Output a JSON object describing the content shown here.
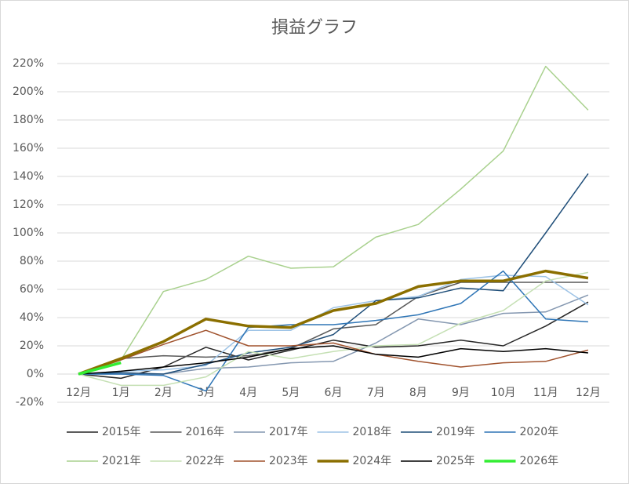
{
  "chart_data": {
    "type": "line",
    "title": "損益グラフ",
    "categories": [
      "12月",
      "1月",
      "2月",
      "3月",
      "4月",
      "5月",
      "6月",
      "7月",
      "8月",
      "9月",
      "10月",
      "11月",
      "12月"
    ],
    "ylim": [
      -20,
      220
    ],
    "yticks": [
      {
        "value": -20,
        "label": "-20%"
      },
      {
        "value": 0,
        "label": "0%"
      },
      {
        "value": 20,
        "label": "20%"
      },
      {
        "value": 40,
        "label": "40%"
      },
      {
        "value": 60,
        "label": "60%"
      },
      {
        "value": 80,
        "label": "80%"
      },
      {
        "value": 100,
        "label": "100%"
      },
      {
        "value": 120,
        "label": "120%"
      },
      {
        "value": 140,
        "label": "140%"
      },
      {
        "value": 160,
        "label": "160%"
      },
      {
        "value": 180,
        "label": "180%"
      },
      {
        "value": 200,
        "label": "200%"
      },
      {
        "value": 220,
        "label": "220%"
      }
    ],
    "grid": true,
    "legend": "bottom",
    "series": [
      {
        "name": "2015年",
        "color": "#262626",
        "width": 1.5,
        "values": [
          0,
          -3,
          5,
          19,
          10,
          17,
          24,
          19,
          20,
          24,
          20,
          34,
          51
        ]
      },
      {
        "name": "2016年",
        "color": "#595959",
        "width": 1.5,
        "values": [
          0,
          11,
          13,
          12,
          13,
          18,
          32,
          35,
          55,
          65,
          65,
          65,
          65
        ]
      },
      {
        "name": "2017年",
        "color": "#8497b0",
        "width": 1.5,
        "values": [
          0,
          0,
          0,
          4,
          5,
          8,
          9,
          22,
          39,
          35,
          43,
          44,
          56
        ]
      },
      {
        "name": "2018年",
        "color": "#9dc3e6",
        "width": 1.5,
        "values": [
          0,
          2,
          3,
          6,
          31,
          31,
          47,
          52,
          55,
          67,
          70,
          69,
          49
        ]
      },
      {
        "name": "2019年",
        "color": "#1f4e79",
        "width": 1.5,
        "values": [
          0,
          1,
          0,
          7,
          15,
          19,
          28,
          52,
          54,
          61,
          59,
          100,
          142
        ]
      },
      {
        "name": "2020年",
        "color": "#2e75b6",
        "width": 1.5,
        "values": [
          0,
          0,
          -1,
          -12,
          33,
          35,
          35,
          38,
          42,
          50,
          73,
          39,
          37
        ]
      },
      {
        "name": "2021年",
        "color": "#a9d18e",
        "width": 1.5,
        "values": [
          0,
          10,
          58.5,
          67,
          83.5,
          75,
          76,
          97,
          106,
          131,
          158,
          218,
          187
        ]
      },
      {
        "name": "2022年",
        "color": "#c5e0b4",
        "width": 1.5,
        "values": [
          0,
          -8,
          -8,
          -2,
          16,
          11,
          16,
          20,
          21,
          36,
          45,
          66,
          72
        ]
      },
      {
        "name": "2023年",
        "color": "#a0522d",
        "width": 1.5,
        "values": [
          0,
          10,
          21,
          31,
          20,
          20,
          22,
          14,
          9,
          5,
          8,
          9,
          17
        ]
      },
      {
        "name": "2024年",
        "color": "#8b6f00",
        "width": 3.5,
        "values": [
          0,
          11,
          23,
          39,
          34,
          33,
          45,
          50,
          62,
          66,
          66,
          73,
          68
        ]
      },
      {
        "name": "2025年",
        "color": "#000000",
        "width": 1.5,
        "values": [
          0,
          2,
          5,
          8,
          12,
          18,
          20,
          14,
          12,
          18,
          16,
          18,
          15
        ]
      },
      {
        "name": "2026年",
        "color": "#33ee33",
        "width": 3.5,
        "values": [
          0,
          8,
          null,
          null,
          null,
          null,
          null,
          null,
          null,
          null,
          null,
          null,
          null
        ]
      }
    ]
  }
}
